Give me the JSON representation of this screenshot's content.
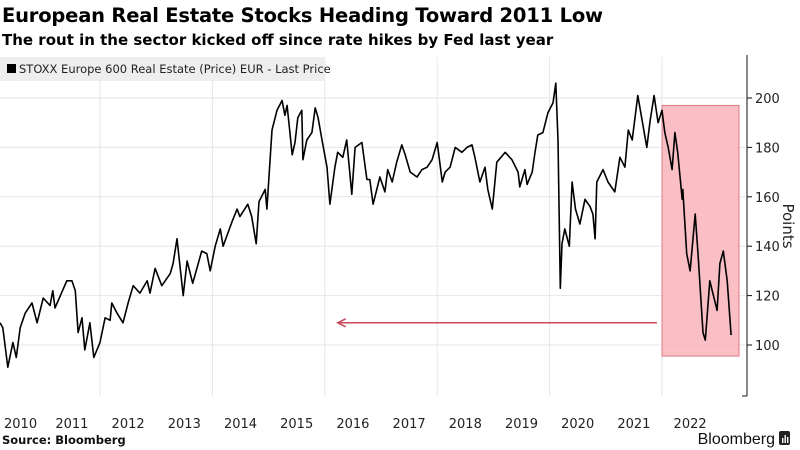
{
  "header": {
    "title": "European Real Estate Stocks Heading Toward 2011 Low",
    "subtitle": "The rout in the sector kicked off since rate hikes by Fed last year"
  },
  "footer": {
    "source": "Source: Bloomberg",
    "brand": "Bloomberg"
  },
  "colors": {
    "line": "#000000",
    "highlight_fill": "#f9b3bb",
    "highlight_stroke": "#e07a88",
    "arrow": "#c94a5c",
    "grid": "#e6e6e6",
    "legend_bg": "#eeeeee"
  },
  "chart_data": {
    "type": "line",
    "title": "European Real Estate Stocks Heading Toward 2011 Low",
    "subtitle": "The rout in the sector kicked off since rate hikes by Fed last year",
    "xlabel": "",
    "ylabel": "Points",
    "legend": {
      "position": "top-left",
      "entries": [
        "STOXX Europe 600 Real Estate (Price) EUR - Last Price"
      ]
    },
    "x_ticks": [
      "2010",
      "2011",
      "2012",
      "2013",
      "2014",
      "2015",
      "2016",
      "2017",
      "2018",
      "2019",
      "2020",
      "2021",
      "2022"
    ],
    "y_ticks": [
      100,
      120,
      140,
      160,
      180,
      200
    ],
    "xlim": [
      2010.0,
      2023.45
    ],
    "ylim": [
      79,
      215
    ],
    "grid": true,
    "y_axis_side": "right",
    "series": [
      {
        "name": "STOXX Europe 600 Real Estate (Price) EUR - Last Price",
        "points": [
          [
            2010.22,
            109
          ],
          [
            2010.27,
            107
          ],
          [
            2010.36,
            91
          ],
          [
            2010.45,
            101
          ],
          [
            2010.51,
            95
          ],
          [
            2010.58,
            107
          ],
          [
            2010.67,
            113
          ],
          [
            2010.79,
            117
          ],
          [
            2010.88,
            109
          ],
          [
            2010.99,
            119
          ],
          [
            2011.11,
            116
          ],
          [
            2011.16,
            122
          ],
          [
            2011.2,
            115
          ],
          [
            2011.41,
            126
          ],
          [
            2011.5,
            126
          ],
          [
            2011.56,
            122
          ],
          [
            2011.61,
            105
          ],
          [
            2011.68,
            111
          ],
          [
            2011.73,
            98
          ],
          [
            2011.82,
            109
          ],
          [
            2011.89,
            95
          ],
          [
            2012.0,
            101
          ],
          [
            2012.09,
            111
          ],
          [
            2012.18,
            110
          ],
          [
            2012.21,
            117
          ],
          [
            2012.3,
            113
          ],
          [
            2012.41,
            109
          ],
          [
            2012.5,
            117
          ],
          [
            2012.59,
            124
          ],
          [
            2012.71,
            121
          ],
          [
            2012.84,
            126
          ],
          [
            2012.89,
            121
          ],
          [
            2012.98,
            131
          ],
          [
            2013.1,
            124
          ],
          [
            2013.25,
            129
          ],
          [
            2013.3,
            133
          ],
          [
            2013.37,
            143
          ],
          [
            2013.48,
            120
          ],
          [
            2013.55,
            134
          ],
          [
            2013.65,
            125
          ],
          [
            2013.81,
            138
          ],
          [
            2013.9,
            137
          ],
          [
            2013.96,
            130
          ],
          [
            2014.05,
            140
          ],
          [
            2014.14,
            147
          ],
          [
            2014.19,
            140
          ],
          [
            2014.35,
            150
          ],
          [
            2014.44,
            155
          ],
          [
            2014.49,
            152
          ],
          [
            2014.63,
            157
          ],
          [
            2014.7,
            152
          ],
          [
            2014.78,
            141
          ],
          [
            2014.83,
            158
          ],
          [
            2014.94,
            163
          ],
          [
            2014.97,
            155
          ],
          [
            2015.06,
            187
          ],
          [
            2015.15,
            195
          ],
          [
            2015.24,
            199
          ],
          [
            2015.29,
            193
          ],
          [
            2015.33,
            197
          ],
          [
            2015.42,
            177
          ],
          [
            2015.47,
            182
          ],
          [
            2015.52,
            192
          ],
          [
            2015.59,
            195
          ],
          [
            2015.61,
            175
          ],
          [
            2015.68,
            183
          ],
          [
            2015.77,
            186
          ],
          [
            2015.83,
            196
          ],
          [
            2015.88,
            192
          ],
          [
            2015.95,
            183
          ],
          [
            2016.04,
            172
          ],
          [
            2016.09,
            157
          ],
          [
            2016.18,
            172
          ],
          [
            2016.23,
            178
          ],
          [
            2016.32,
            176
          ],
          [
            2016.39,
            183
          ],
          [
            2016.44,
            171
          ],
          [
            2016.48,
            161
          ],
          [
            2016.54,
            180
          ],
          [
            2016.66,
            182
          ],
          [
            2016.75,
            167
          ],
          [
            2016.8,
            167
          ],
          [
            2016.86,
            157
          ],
          [
            2016.98,
            168
          ],
          [
            2017.07,
            162
          ],
          [
            2017.12,
            171
          ],
          [
            2017.2,
            166
          ],
          [
            2017.28,
            174
          ],
          [
            2017.37,
            181
          ],
          [
            2017.43,
            177
          ],
          [
            2017.52,
            170
          ],
          [
            2017.64,
            168
          ],
          [
            2017.73,
            171
          ],
          [
            2017.82,
            172
          ],
          [
            2017.91,
            175
          ],
          [
            2018.0,
            182
          ],
          [
            2018.09,
            166
          ],
          [
            2018.14,
            170
          ],
          [
            2018.23,
            172
          ],
          [
            2018.32,
            180
          ],
          [
            2018.44,
            178
          ],
          [
            2018.53,
            180
          ],
          [
            2018.62,
            181
          ],
          [
            2018.67,
            176
          ],
          [
            2018.76,
            166
          ],
          [
            2018.85,
            172
          ],
          [
            2018.9,
            163
          ],
          [
            2018.98,
            155
          ],
          [
            2019.06,
            174
          ],
          [
            2019.21,
            178
          ],
          [
            2019.33,
            175
          ],
          [
            2019.44,
            170
          ],
          [
            2019.47,
            164
          ],
          [
            2019.56,
            171
          ],
          [
            2019.6,
            165
          ],
          [
            2019.69,
            170
          ],
          [
            2019.74,
            178
          ],
          [
            2019.79,
            185
          ],
          [
            2019.88,
            186
          ],
          [
            2019.97,
            194
          ],
          [
            2020.06,
            198
          ],
          [
            2020.11,
            206
          ],
          [
            2020.15,
            183
          ],
          [
            2020.19,
            123
          ],
          [
            2020.22,
            141
          ],
          [
            2020.27,
            147
          ],
          [
            2020.35,
            140
          ],
          [
            2020.4,
            166
          ],
          [
            2020.46,
            155
          ],
          [
            2020.54,
            149
          ],
          [
            2020.63,
            159
          ],
          [
            2020.72,
            156
          ],
          [
            2020.77,
            153
          ],
          [
            2020.81,
            143
          ],
          [
            2020.84,
            166
          ],
          [
            2020.95,
            171
          ],
          [
            2021.04,
            166
          ],
          [
            2021.16,
            162
          ],
          [
            2021.25,
            176
          ],
          [
            2021.34,
            172
          ],
          [
            2021.4,
            187
          ],
          [
            2021.47,
            183
          ],
          [
            2021.57,
            201
          ],
          [
            2021.73,
            180
          ],
          [
            2021.79,
            191
          ],
          [
            2021.86,
            201
          ],
          [
            2021.93,
            190
          ],
          [
            2022.0,
            195
          ],
          [
            2022.05,
            186
          ],
          [
            2022.11,
            180
          ],
          [
            2022.18,
            171
          ],
          [
            2022.23,
            186
          ],
          [
            2022.28,
            178
          ],
          [
            2022.36,
            159
          ],
          [
            2022.37,
            163
          ],
          [
            2022.44,
            137
          ],
          [
            2022.5,
            130
          ],
          [
            2022.59,
            153
          ],
          [
            2022.64,
            137
          ],
          [
            2022.73,
            105
          ],
          [
            2022.77,
            102
          ],
          [
            2022.85,
            126
          ],
          [
            2022.98,
            114
          ],
          [
            2023.03,
            133
          ],
          [
            2023.09,
            138
          ],
          [
            2023.16,
            126
          ],
          [
            2023.23,
            104
          ]
        ]
      }
    ],
    "annotations": [
      {
        "type": "highlight-box",
        "x": [
          2022.0,
          2023.37
        ],
        "y": [
          95.5,
          197
        ]
      },
      {
        "type": "arrow",
        "from": [
          2021.91,
          109
        ],
        "to": [
          2016.23,
          109
        ]
      }
    ]
  }
}
